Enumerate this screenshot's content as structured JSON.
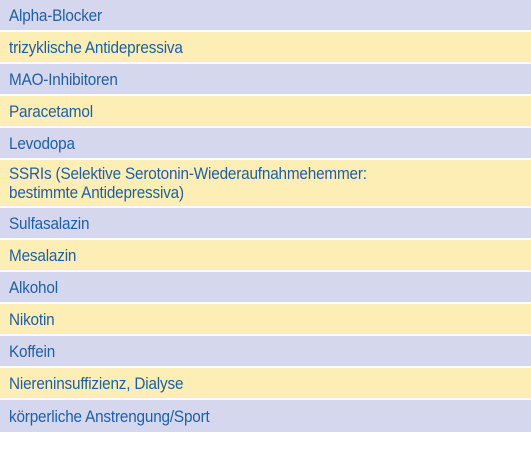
{
  "rows": [
    {
      "label": "Alpha-Blocker",
      "color": "#d5d7ee"
    },
    {
      "label": "trizyklische Antidepressiva",
      "color": "#fdeeb6"
    },
    {
      "label": "MAO-Inhibitoren",
      "color": "#d5d7ee"
    },
    {
      "label": "Paracetamol",
      "color": "#fdeeb6"
    },
    {
      "label": "Levodopa",
      "color": "#d5d7ee"
    },
    {
      "label": "SSRIs (Selektive Serotonin-Wiederaufnahmehemmer:\nbestimmte Antidepressiva)",
      "color": "#fdeeb6"
    },
    {
      "label": "Sulfasalazin",
      "color": "#d5d7ee"
    },
    {
      "label": "Mesalazin",
      "color": "#fdeeb6"
    },
    {
      "label": "Alkohol",
      "color": "#d5d7ee"
    },
    {
      "label": "Nikotin",
      "color": "#fdeeb6"
    },
    {
      "label": "Koffein",
      "color": "#d5d7ee"
    },
    {
      "label": "Niereninsuffizienz, Dialyse",
      "color": "#fdeeb6"
    },
    {
      "label": "körperliche Anstrengung/Sport",
      "color": "#d5d7ee"
    }
  ],
  "colors": {
    "text": "#1f5fa5",
    "row_blue": "#d5d7ee",
    "row_yellow": "#fdeeb6"
  }
}
